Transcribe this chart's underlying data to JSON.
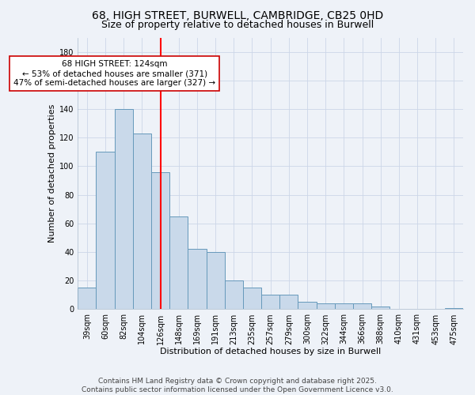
{
  "title_line1": "68, HIGH STREET, BURWELL, CAMBRIDGE, CB25 0HD",
  "title_line2": "Size of property relative to detached houses in Burwell",
  "xlabel": "Distribution of detached houses by size in Burwell",
  "ylabel": "Number of detached properties",
  "categories": [
    "39sqm",
    "60sqm",
    "82sqm",
    "104sqm",
    "126sqm",
    "148sqm",
    "169sqm",
    "191sqm",
    "213sqm",
    "235sqm",
    "257sqm",
    "279sqm",
    "300sqm",
    "322sqm",
    "344sqm",
    "366sqm",
    "388sqm",
    "410sqm",
    "431sqm",
    "453sqm",
    "475sqm"
  ],
  "values": [
    15,
    110,
    140,
    123,
    96,
    65,
    42,
    40,
    20,
    15,
    10,
    10,
    5,
    4,
    4,
    4,
    2,
    0,
    0,
    0,
    1
  ],
  "bar_color": "#c9d9ea",
  "bar_edge_color": "#6699bb",
  "red_line_index": 4,
  "annotation_text": "68 HIGH STREET: 124sqm\n← 53% of detached houses are smaller (371)\n47% of semi-detached houses are larger (327) →",
  "annotation_box_color": "#ffffff",
  "annotation_box_edge": "#cc0000",
  "ylim": [
    0,
    190
  ],
  "yticks": [
    0,
    20,
    40,
    60,
    80,
    100,
    120,
    140,
    160,
    180
  ],
  "grid_color": "#ccd6e8",
  "background_color": "#eef2f8",
  "footer_text": "Contains HM Land Registry data © Crown copyright and database right 2025.\nContains public sector information licensed under the Open Government Licence v3.0.",
  "title_fontsize": 10,
  "subtitle_fontsize": 9,
  "axis_label_fontsize": 8,
  "tick_fontsize": 7,
  "annotation_fontsize": 7.5,
  "footer_fontsize": 6.5
}
